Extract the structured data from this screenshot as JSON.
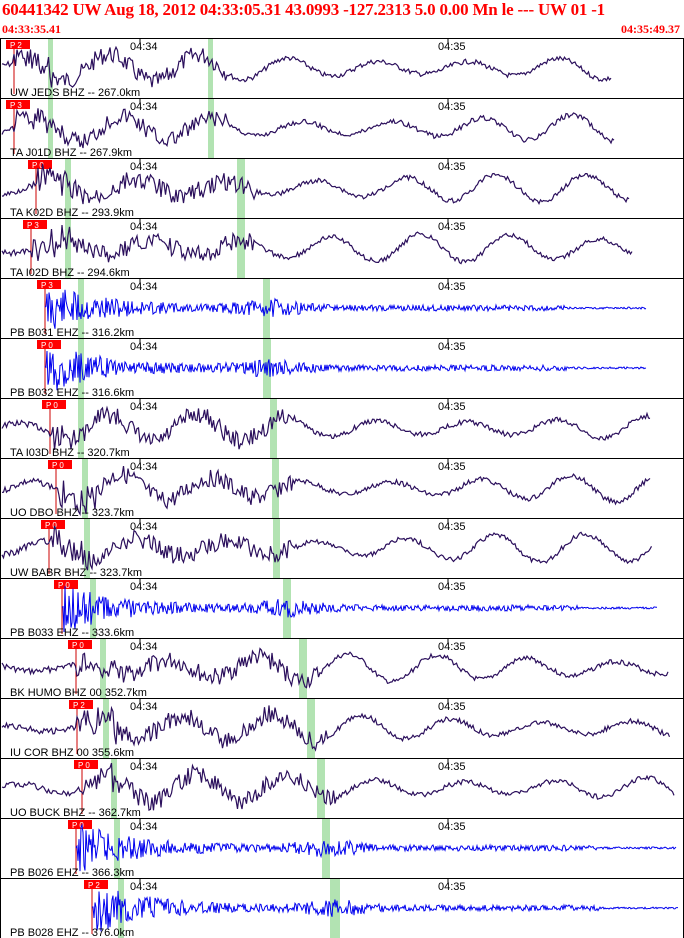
{
  "header": {
    "title": "60441342 UW Aug 18, 2012 04:33:05.31    43.0993 -127.2313  5.0 0.00 Mn le --- UW 01   -1",
    "time_start": "04:33:35.41",
    "time_end": "04:35:49.37"
  },
  "colors": {
    "header_text": "#ff0000",
    "broadband_trace": "#2b0f5c",
    "short_period_trace": "#0000ee",
    "pick_box": "#ff0000",
    "pick_line": "#cc0000",
    "window_band": "#9fdc9f",
    "panel_border": "#000000"
  },
  "chart_data": {
    "type": "seismogram",
    "time_range": [
      "04:33:35.41",
      "04:35:49.37"
    ],
    "minute_labels": [
      "04:34",
      "04:35"
    ],
    "traces": [
      {
        "label": "UW JEDS BHZ -- 267.0km",
        "pick": "P 2",
        "kind": "bb"
      },
      {
        "label": "TA J01D BHZ -- 267.9km",
        "pick": "P 3",
        "kind": "bb"
      },
      {
        "label": "TA K02D BHZ -- 293.9km",
        "pick": "P 0",
        "kind": "bb"
      },
      {
        "label": "TA I02D BHZ -- 294.6km",
        "pick": "P 3",
        "kind": "bb"
      },
      {
        "label": "PB B031 EHZ -- 316.2km",
        "pick": "P 3",
        "kind": "sp"
      },
      {
        "label": "PB B032 EHZ -- 316.6km",
        "pick": "P 0",
        "kind": "sp"
      },
      {
        "label": "TA I03D BHZ -- 320.7km",
        "pick": "P 0",
        "kind": "bb"
      },
      {
        "label": "UO DBO BHZ -- 323.7km",
        "pick": "P 0",
        "kind": "bb"
      },
      {
        "label": "UW BABR BHZ -- 323.7km",
        "pick": "P 0",
        "kind": "bb"
      },
      {
        "label": "PB B033 EHZ -- 333.6km",
        "pick": "P 0",
        "kind": "sp"
      },
      {
        "label": "BK HUMO BHZ 00 352.7km",
        "pick": "P 0",
        "kind": "bb"
      },
      {
        "label": "IU COR BHZ 00 355.6km",
        "pick": "P 2",
        "kind": "bb"
      },
      {
        "label": "UO BUCK BHZ -- 362.7km",
        "pick": "P 0",
        "kind": "bb"
      },
      {
        "label": "PB B026 EHZ -- 366.3km",
        "pick": "P 0",
        "kind": "sp"
      },
      {
        "label": "PB B028 EHZ -- 376.0km",
        "pick": "P 2",
        "kind": "sp"
      }
    ]
  }
}
